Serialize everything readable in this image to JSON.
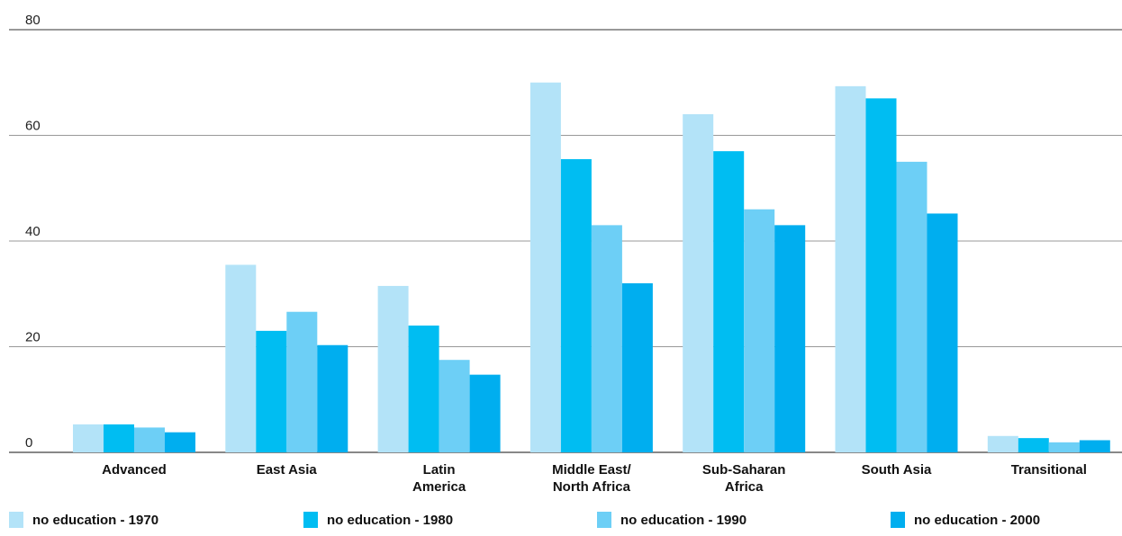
{
  "chart_data": {
    "type": "bar",
    "title": "",
    "xlabel": "",
    "ylabel": "",
    "ylim": [
      0,
      80
    ],
    "yticks": [
      "0",
      "20",
      "40",
      "60",
      "80"
    ],
    "categories": [
      [
        "Advanced"
      ],
      [
        "East Asia"
      ],
      [
        "Latin",
        "America"
      ],
      [
        "Middle East/",
        "North Africa"
      ],
      [
        "Sub-Saharan",
        "Africa"
      ],
      [
        "South Asia"
      ],
      [
        "Transitional"
      ]
    ],
    "series": [
      {
        "name": "no education - 1970",
        "color": "#b3e3f8",
        "values": [
          5.3,
          35.5,
          31.5,
          70,
          64,
          69.3,
          3.1
        ]
      },
      {
        "name": "no education - 1980",
        "color": "#00bdf2",
        "values": [
          5.3,
          23,
          24,
          55.5,
          57,
          67,
          2.7
        ]
      },
      {
        "name": "no education - 1990",
        "color": "#6dcff6",
        "values": [
          4.7,
          26.6,
          17.5,
          43,
          46,
          55,
          1.9
        ]
      },
      {
        "name": "no education - 2000",
        "color": "#00aeef",
        "values": [
          3.8,
          20.3,
          14.7,
          32,
          43,
          45.2,
          2.3
        ]
      }
    ],
    "grid": true,
    "legend_position": "bottom"
  }
}
